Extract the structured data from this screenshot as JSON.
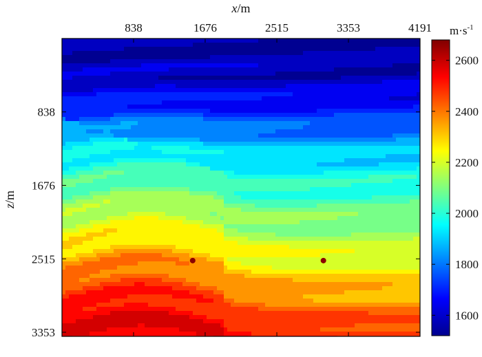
{
  "chart_data": {
    "type": "heatmap",
    "title": "",
    "xlabel": {
      "var": "x",
      "unit": "/m"
    },
    "ylabel": {
      "var": "z",
      "unit": "/m"
    },
    "x_ticks": [
      838,
      1676,
      2515,
      3353,
      4191
    ],
    "y_ticks": [
      838,
      1676,
      2515,
      3353
    ],
    "xlim": [
      0,
      4191
    ],
    "ylim": [
      0,
      3400
    ],
    "y_direction": "down",
    "x_axis_position": "top",
    "colorbar": {
      "label": "m·s",
      "label_exp": "-1",
      "ticks": [
        1600,
        1800,
        2000,
        2200,
        2400,
        2600
      ],
      "range": [
        1520,
        2680
      ],
      "colormap": "jet"
    },
    "velocity_layers": [
      {
        "z": 0,
        "v": 1560
      },
      {
        "z": 500,
        "v": 1600
      },
      {
        "z": 900,
        "v": 1720
      },
      {
        "z": 1300,
        "v": 1900
      },
      {
        "z": 1700,
        "v": 2000
      },
      {
        "z": 2100,
        "v": 2120
      },
      {
        "z": 2500,
        "v": 2250
      },
      {
        "z": 2900,
        "v": 2400
      },
      {
        "z": 3400,
        "v": 2560
      }
    ],
    "point_sources": [
      {
        "x": 1530,
        "z": 2535
      },
      {
        "x": 3060,
        "z": 2535
      }
    ],
    "grid": false
  }
}
